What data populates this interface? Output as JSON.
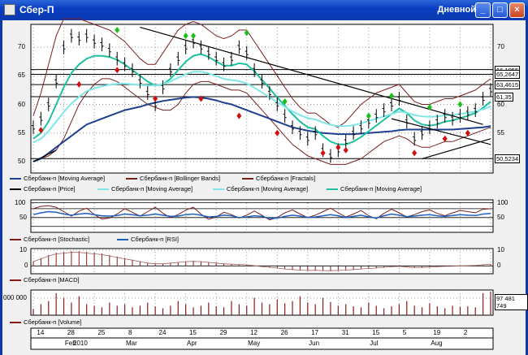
{
  "window": {
    "title": "Сбер-П",
    "period": "Дневной",
    "minimize": "_",
    "maximize": "□",
    "close": "×"
  },
  "colors": {
    "price": "#000000",
    "ma_fast": "#1fc0a0",
    "ma_mid": "#7ee8e8",
    "ma_slow": "#1f3f8f",
    "bollinger": "#7a1f1f",
    "fractal_up": "#18c018",
    "fractal_down": "#d01010",
    "stoch": "#7a1f1f",
    "rsi": "#1f5fbf",
    "macd": "#8b1a1a",
    "volume": "#8b1a1a"
  },
  "price_axis": {
    "ticks": [
      "70",
      "65",
      "60",
      "55",
      "50"
    ]
  },
  "price_labels": [
    "66,1055",
    "65,2647",
    "63,4615",
    "61,35",
    "50,5234"
  ],
  "legend_price": [
    {
      "label": "Сбербанк-п [Moving Average]",
      "color": "#1f3f8f"
    },
    {
      "label": "Сбербанк-п [Bollinger Bands]",
      "color": "#7a1f1f"
    },
    {
      "label": "Сбербанк-п [Fractals]",
      "color": "#7a1f1f"
    },
    {
      "label": "Сбербанк-п [Price]",
      "color": "#000000"
    },
    {
      "label": "Сбербанк-п [Moving Average]",
      "color": "#7ee8e8"
    },
    {
      "label": "Сбербанк-п [Moving Average]",
      "color": "#7ee8e8"
    },
    {
      "label": "Сбербанк-п [Moving Average]",
      "color": "#1fc0a0"
    }
  ],
  "osc_axis": {
    "left": [
      "100",
      "50"
    ],
    "right": [
      "100",
      "50"
    ]
  },
  "legend_osc": [
    {
      "label": "Сбербанк-п [Stochastic]",
      "color": "#7a1f1f"
    },
    {
      "label": "Сбербанк-п [RSI]",
      "color": "#1f5fbf"
    }
  ],
  "macd_axis": {
    "left": [
      "10",
      "0"
    ],
    "right": [
      "10",
      "0"
    ]
  },
  "legend_macd": [
    {
      "label": "Сбербанк-п [MACD]",
      "color": "#8b1a1a"
    }
  ],
  "vol_axis": {
    "left": "000 000",
    "right": "97 481 749"
  },
  "legend_vol": [
    {
      "label": "Сбербанк-п [Volume]",
      "color": "#8b1a1a"
    }
  ],
  "x_axis": {
    "days": [
      "14",
      "28",
      "25",
      "8",
      "24",
      "15",
      "29",
      "12",
      "26",
      "17",
      "31",
      "15",
      "5",
      "19",
      "2"
    ],
    "months": [
      "2010",
      "Feb",
      "Mar",
      "Apr",
      "May",
      "Jun",
      "Jul",
      "Aug"
    ]
  },
  "chart_data": {
    "type": "line",
    "title": "Сбер-П",
    "x_unit": "date (daily, Jan–Aug 2010)",
    "ylim": [
      48,
      74
    ],
    "series": [
      {
        "name": "Сбербанк-п [Price]",
        "values": [
          56,
          57.5,
          60,
          64,
          70,
          72,
          71.5,
          72,
          71,
          70.5,
          69.5,
          68,
          67,
          66,
          64,
          62,
          60,
          63,
          66,
          68,
          70,
          71,
          70,
          69,
          68,
          67,
          68,
          70,
          69,
          66,
          64,
          62,
          60,
          58,
          56,
          55,
          54,
          55,
          52,
          51,
          52,
          53.5,
          55,
          56,
          57,
          58,
          59,
          60,
          61,
          57,
          54,
          55,
          56,
          57,
          58,
          57.5,
          58,
          58.5,
          59,
          61,
          62.5
        ]
      },
      {
        "name": "Сбербанк-п [Moving Average] slow",
        "values": [
          50,
          50.5,
          51.5,
          52.5,
          53.5,
          54.5,
          55.5,
          56.5,
          57,
          57.5,
          58,
          58.5,
          59,
          59.3,
          59.6,
          60,
          60.3,
          60.6,
          60.8,
          61,
          61.2,
          61.3,
          61.2,
          61,
          60.7,
          60.3,
          60,
          59.5,
          59,
          58.5,
          58,
          57.5,
          57,
          56.5,
          56,
          55.7,
          55.4,
          55.2,
          55,
          54.9,
          54.8,
          54.8,
          54.8,
          54.9,
          55,
          55.1,
          55.2,
          55.3,
          55.5,
          55.6,
          55.6,
          55.6,
          55.6,
          55.6,
          55.6,
          55.6,
          55.7,
          55.8,
          55.9,
          56,
          56.2
        ]
      },
      {
        "name": "Сбербанк-п [Moving Average] fast",
        "values": [
          54,
          55,
          57,
          60,
          63,
          65.5,
          67,
          68,
          68.5,
          68.5,
          68.3,
          67.8,
          67,
          66,
          65,
          64,
          63.3,
          63.5,
          64.5,
          66,
          67.5,
          68.5,
          68.8,
          68.3,
          67.5,
          66.8,
          66.8,
          67.2,
          67,
          65.8,
          64.3,
          62.8,
          61.2,
          59.8,
          58.3,
          57,
          56,
          55.7,
          54.5,
          53.5,
          53,
          53,
          53.5,
          54.3,
          55.3,
          56.3,
          57.3,
          58.3,
          59.3,
          58.5,
          57.2,
          56.5,
          56.3,
          56.5,
          57,
          57.2,
          57.6,
          58,
          58.5,
          59.4,
          60.5
        ]
      }
    ],
    "bollinger": {
      "upper": [
        58,
        62,
        67,
        72,
        75,
        75,
        75,
        74.5,
        74,
        73.5,
        73,
        72,
        71,
        69.5,
        68,
        67,
        67,
        69,
        71,
        73,
        74,
        74.5,
        74,
        73,
        72,
        71.5,
        72,
        73,
        73,
        71,
        69,
        67,
        65,
        63,
        61,
        59.5,
        58.5,
        58.5,
        57.5,
        56.5,
        56,
        57,
        58.5,
        60,
        61,
        62,
        62.5,
        63,
        63.5,
        62,
        60.5,
        60,
        60,
        60.5,
        61,
        61,
        61.5,
        62,
        62.5,
        63.5,
        64.5
      ],
      "lower": [
        50,
        50.5,
        51,
        52,
        54,
        57,
        60,
        62,
        63.5,
        64.5,
        64.5,
        64,
        63,
        62,
        61,
        60,
        59.5,
        59,
        59,
        60,
        62,
        63.5,
        64,
        64,
        63.5,
        63,
        62.5,
        62.5,
        62,
        60.5,
        59,
        57.5,
        56,
        54.5,
        53,
        52,
        51,
        50.5,
        50,
        49.5,
        49.5,
        49.5,
        50,
        50.5,
        51.5,
        52.5,
        53.5,
        54,
        54.5,
        54,
        53,
        52.5,
        52.5,
        53,
        53.5,
        53.5,
        54,
        54.5,
        55,
        55.5,
        56
      ]
    },
    "horizontal_levels": [
      66.1055,
      65.2647,
      63.4615,
      61.35,
      50.5234
    ],
    "trendlines": [
      {
        "from": [
          14,
          73.5
        ],
        "to": [
          59,
          56.5
        ]
      },
      {
        "from": [
          51,
          50.5
        ],
        "to": [
          60,
          54
        ]
      },
      {
        "from": [
          47,
          57.5
        ],
        "to": [
          60,
          53
        ]
      },
      {
        "from": [
          0,
          50
        ],
        "to": [
          3,
          52
        ]
      }
    ],
    "fractals_up": [
      [
        11,
        73
      ],
      [
        20,
        72
      ],
      [
        21,
        72
      ],
      [
        28,
        72.5
      ],
      [
        33,
        60.5
      ],
      [
        44,
        58
      ],
      [
        47,
        61.5
      ],
      [
        52,
        59.5
      ],
      [
        56,
        60
      ]
    ],
    "fractals_down": [
      [
        1,
        55.5
      ],
      [
        6,
        63.5
      ],
      [
        11,
        66
      ],
      [
        16,
        61
      ],
      [
        22,
        61
      ],
      [
        27,
        58
      ],
      [
        32,
        55
      ],
      [
        38,
        51.5
      ],
      [
        40,
        52.5
      ],
      [
        41,
        52
      ],
      [
        50,
        51.5
      ],
      [
        54,
        54
      ],
      [
        57,
        55
      ]
    ],
    "stochastic": [
      80,
      88,
      90,
      85,
      70,
      55,
      72,
      82,
      60,
      45,
      48,
      62,
      80,
      68,
      55,
      70,
      85,
      65,
      50,
      60,
      75,
      85,
      62,
      44,
      52,
      68,
      60,
      48,
      58,
      72,
      58,
      42,
      50,
      66,
      76,
      62,
      50,
      58,
      70,
      82,
      66,
      52,
      62,
      74,
      56,
      46,
      64,
      78,
      66,
      52,
      60,
      70,
      76,
      64,
      56,
      66,
      74,
      70,
      66,
      78,
      80
    ],
    "rsi": [
      60,
      66,
      70,
      68,
      62,
      58,
      62,
      64,
      60,
      56,
      55,
      57,
      62,
      60,
      56,
      58,
      62,
      58,
      54,
      55,
      60,
      62,
      58,
      52,
      54,
      58,
      56,
      50,
      52,
      56,
      54,
      47,
      48,
      54,
      58,
      55,
      50,
      52,
      56,
      60,
      56,
      50,
      54,
      58,
      52,
      48,
      56,
      62,
      58,
      53,
      55,
      58,
      60,
      56,
      54,
      57,
      60,
      58,
      57,
      62,
      64
    ],
    "macd": [
      3,
      5,
      7,
      8.5,
      9,
      9.5,
      9.5,
      9,
      8.5,
      8,
      7,
      6,
      5,
      4,
      3,
      2,
      1.5,
      1.5,
      2,
      2.5,
      3,
      3.2,
      3,
      2.5,
      2,
      1.5,
      1.2,
      1,
      0.8,
      0.2,
      -0.5,
      -1,
      -1.5,
      -2.2,
      -2.6,
      -3,
      -3.2,
      -3.1,
      -3.3,
      -3.4,
      -3.2,
      -3,
      -2.6,
      -2.2,
      -1.8,
      -1.5,
      -1,
      -0.6,
      -0.3,
      -0.8,
      -1.2,
      -1.1,
      -0.9,
      -0.6,
      -0.3,
      -0.2,
      0,
      0.2,
      0.4,
      0.8,
      1.2
    ],
    "volume_pct": [
      20,
      35,
      45,
      70,
      55,
      40,
      60,
      35,
      30,
      25,
      40,
      30,
      35,
      25,
      30,
      40,
      28,
      22,
      30,
      45,
      35,
      25,
      30,
      40,
      28,
      25,
      45,
      35,
      30,
      55,
      40,
      35,
      50,
      38,
      45,
      60,
      40,
      35,
      55,
      42,
      30,
      35,
      28,
      25,
      40,
      30,
      22,
      28,
      35,
      45,
      30,
      25,
      38,
      28,
      22,
      30,
      26,
      28,
      25,
      70,
      75
    ]
  }
}
